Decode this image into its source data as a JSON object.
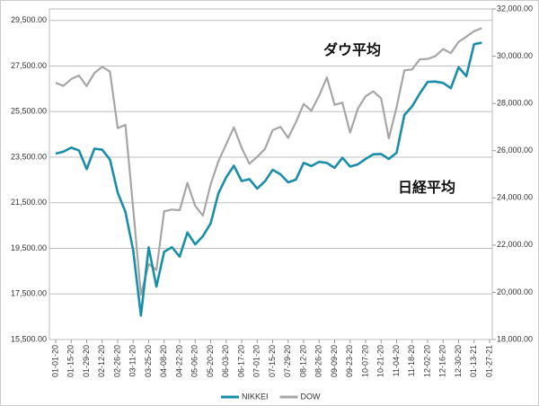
{
  "chart_data": {
    "type": "line",
    "annotations": [
      "ダウ平均",
      "日経平均"
    ],
    "x": [
      "01-01-20",
      "01-08-20",
      "01-15-20",
      "01-22-20",
      "01-29-20",
      "02-05-20",
      "02-12-20",
      "02-19-20",
      "02-26-20",
      "03-04-20",
      "03-11-20",
      "03-18-20",
      "03-25-20",
      "04-01-20",
      "04-08-20",
      "04-15-20",
      "04-22-20",
      "04-29-20",
      "05-06-20",
      "05-13-20",
      "05-20-20",
      "05-27-20",
      "06-03-20",
      "06-10-20",
      "06-17-20",
      "06-24-20",
      "07-01-20",
      "07-08-20",
      "07-15-20",
      "07-22-20",
      "07-29-20",
      "08-05-20",
      "08-12-20",
      "08-19-20",
      "08-26-20",
      "09-02-20",
      "09-09-20",
      "09-16-20",
      "09-23-20",
      "09-30-20",
      "10-07-20",
      "10-14-20",
      "10-21-20",
      "10-28-20",
      "11-04-20",
      "11-11-20",
      "11-18-20",
      "11-25-20",
      "12-02-20",
      "12-09-20",
      "12-16-20",
      "12-23-20",
      "12-30-20",
      "01-06-21",
      "01-13-21",
      "01-20-21"
    ],
    "series": [
      {
        "name": "NIKKEI",
        "color": "#1a8ea8",
        "axis": "y",
        "values": [
          23657,
          23739,
          23916,
          23795,
          22977,
          23873,
          23827,
          23400,
          21948,
          21100,
          19416,
          16552,
          19546,
          17819,
          19353,
          19550,
          19137,
          20193,
          19674,
          20037,
          20595,
          21916,
          22613,
          23124,
          22455,
          22534,
          22121,
          22438,
          22945,
          22751,
          22397,
          22514,
          23249,
          23110,
          23296,
          23247,
          23032,
          23475,
          23087,
          23185,
          23422,
          23626,
          23639,
          23418,
          23695,
          25349,
          25728,
          26297,
          26800,
          26817,
          26757,
          26524,
          27444,
          27056,
          28456,
          28523
        ]
      },
      {
        "name": "DOW",
        "color": "#a6a6a6",
        "axis": "y2",
        "values": [
          28868,
          28745,
          29030,
          29186,
          28734,
          29290,
          29551,
          29348,
          26957,
          27090,
          23553,
          19899,
          21200,
          20943,
          23433,
          23504,
          23475,
          24634,
          23664,
          23247,
          24575,
          25548,
          26269,
          26990,
          26119,
          25445,
          25734,
          26067,
          26870,
          27005,
          26540,
          27201,
          27976,
          27692,
          28332,
          29100,
          27940,
          28032,
          26763,
          27782,
          28303,
          28514,
          28211,
          26519,
          27848,
          29398,
          29438,
          29872,
          29884,
          29999,
          30303,
          30129,
          30606,
          30829,
          31060,
          31188
        ]
      }
    ],
    "xticks": [
      "01-01-20",
      "01-15-20",
      "01-29-20",
      "02-12-20",
      "02-26-20",
      "03-11-20",
      "03-25-20",
      "04-08-20",
      "04-22-20",
      "05-06-20",
      "05-20-20",
      "06-03-20",
      "06-17-20",
      "07-01-20",
      "07-15-20",
      "07-29-20",
      "08-12-20",
      "08-26-20",
      "09-09-20",
      "09-23-20",
      "10-07-20",
      "10-21-20",
      "11-04-20",
      "11-18-20",
      "12-02-20",
      "12-16-20",
      "12-30-20",
      "01-13-21",
      "01-27-21"
    ],
    "ylim": [
      15500,
      30000
    ],
    "yticks": [
      {
        "value": 15500,
        "label": "15,500.00"
      },
      {
        "value": 17500,
        "label": "17,500.00"
      },
      {
        "value": 19500,
        "label": "19,500.00"
      },
      {
        "value": 21500,
        "label": "21,500.00"
      },
      {
        "value": 23500,
        "label": "23,500.00"
      },
      {
        "value": 25500,
        "label": "25,500.00"
      },
      {
        "value": 27500,
        "label": "27,500.00"
      },
      {
        "value": 29500,
        "label": "29,500.00"
      }
    ],
    "y2lim": [
      18000,
      32000
    ],
    "y2ticks": [
      {
        "value": 18000,
        "label": "18,000.00"
      },
      {
        "value": 20000,
        "label": "20,000.00"
      },
      {
        "value": 22000,
        "label": "22,000.00"
      },
      {
        "value": 24000,
        "label": "24,000.00"
      },
      {
        "value": 26000,
        "label": "26,000.00"
      },
      {
        "value": 28000,
        "label": "28,000.00"
      },
      {
        "value": 30000,
        "label": "30,000.00"
      },
      {
        "value": 32000,
        "label": "32,000.00"
      }
    ],
    "grid": true,
    "legend": "bottom"
  }
}
